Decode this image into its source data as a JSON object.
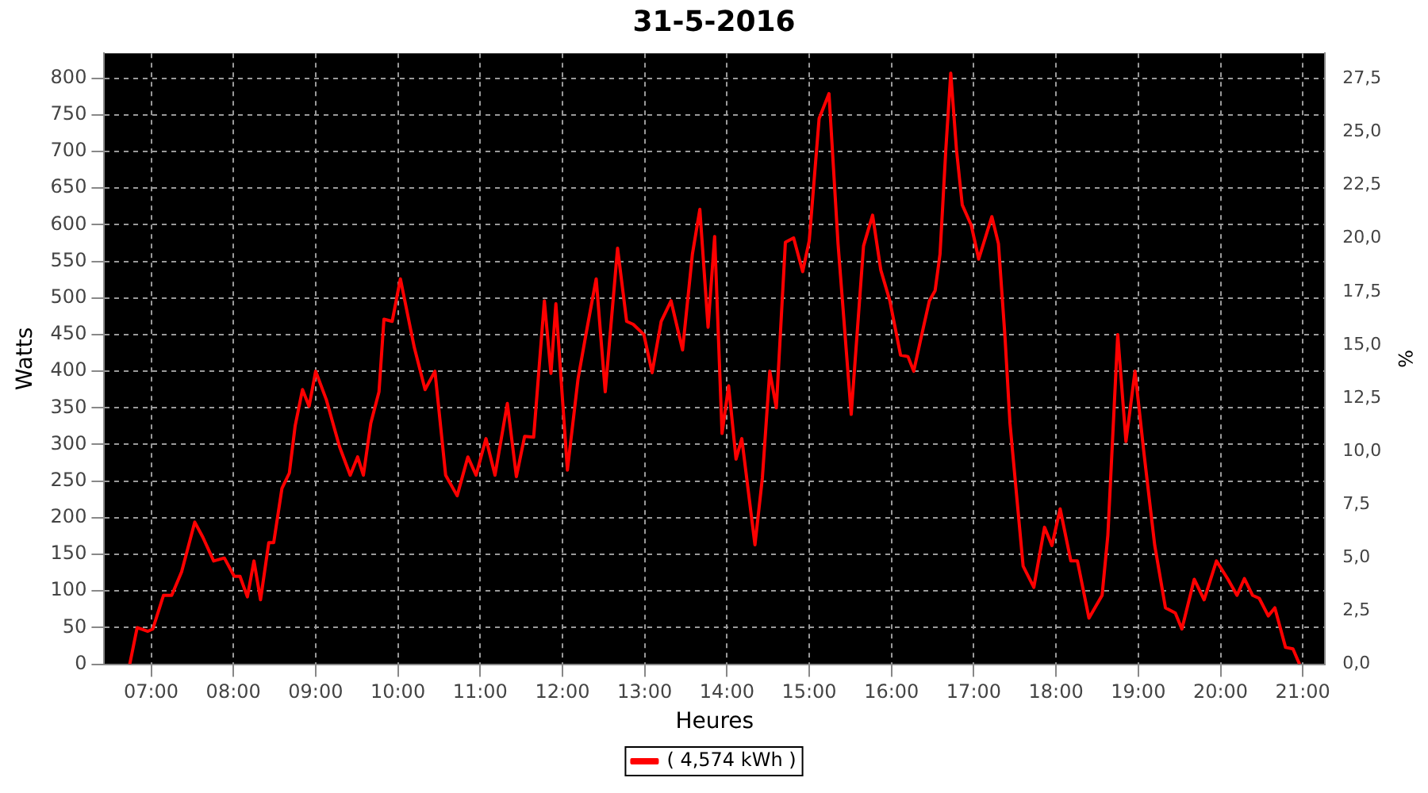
{
  "chart_data": {
    "type": "line",
    "title": "31-5-2016",
    "xlabel": "Heures",
    "ylabel": "Watts",
    "y2label": "%",
    "x": [
      6.74,
      6.83,
      6.96,
      7.02,
      7.15,
      7.25,
      7.37,
      7.53,
      7.63,
      7.76,
      7.89,
      8.01,
      8.08,
      8.17,
      8.25,
      8.33,
      8.43,
      8.49,
      8.59,
      8.68,
      8.75,
      8.84,
      8.92,
      9.0,
      9.13,
      9.29,
      9.42,
      9.51,
      9.58,
      9.67,
      9.77,
      9.83,
      9.93,
      10.03,
      10.2,
      10.33,
      10.45,
      10.58,
      10.72,
      10.85,
      10.95,
      11.07,
      11.18,
      11.33,
      11.44,
      11.54,
      11.65,
      11.78,
      11.86,
      11.92,
      12.06,
      12.19,
      12.29,
      12.41,
      12.52,
      12.67,
      12.78,
      12.86,
      12.99,
      13.09,
      13.2,
      13.32,
      13.46,
      13.58,
      13.67,
      13.77,
      13.85,
      13.94,
      14.02,
      14.11,
      14.18,
      14.34,
      14.43,
      14.52,
      14.6,
      14.71,
      14.81,
      14.92,
      15.0,
      15.12,
      15.24,
      15.35,
      15.51,
      15.66,
      15.77,
      15.87,
      15.98,
      16.11,
      16.2,
      16.27,
      16.36,
      16.46,
      16.53,
      16.59,
      16.66,
      16.72,
      16.79,
      16.86,
      16.97,
      17.06,
      17.22,
      17.3,
      17.38,
      17.44,
      17.6,
      17.73,
      17.86,
      17.95,
      18.05,
      18.18,
      18.26,
      18.4,
      18.56,
      18.63,
      18.75,
      18.85,
      18.96,
      19.07,
      19.2,
      19.33,
      19.45,
      19.53,
      19.68,
      19.8,
      19.95,
      20.09,
      20.2,
      20.29,
      20.39,
      20.47,
      20.58,
      20.66,
      20.79,
      20.88,
      20.96
    ],
    "series": [
      {
        "name": "( 4,574 kWh )",
        "color": "#ff0000",
        "values": [
          0,
          50,
          45,
          48,
          94,
          94,
          126,
          194,
          173,
          141,
          145,
          120,
          120,
          92,
          141,
          88,
          166,
          166,
          240,
          261,
          325,
          375,
          352,
          400,
          361,
          297,
          258,
          283,
          258,
          329,
          372,
          471,
          468,
          526,
          432,
          375,
          400,
          258,
          230,
          283,
          258,
          308,
          258,
          356,
          256,
          311,
          310,
          496,
          397,
          492,
          265,
          390,
          453,
          526,
          372,
          568,
          468,
          464,
          450,
          398,
          468,
          496,
          429,
          560,
          621,
          460,
          584,
          315,
          380,
          280,
          308,
          163,
          254,
          400,
          350,
          576,
          582,
          536,
          578,
          745,
          779,
          574,
          341,
          571,
          613,
          538,
          496,
          422,
          420,
          400,
          446,
          496,
          510,
          560,
          702,
          807,
          702,
          627,
          599,
          553,
          611,
          574,
          446,
          329,
          134,
          105,
          187,
          162,
          212,
          141,
          141,
          63,
          94,
          176,
          450,
          304,
          400,
          287,
          162,
          77,
          70,
          48,
          116,
          88,
          141,
          116,
          94,
          117,
          94,
          90,
          66,
          77,
          23,
          21,
          0
        ]
      }
    ],
    "xlim": [
      6.43,
      21.27
    ],
    "xticks": [
      {
        "value": 7,
        "label": "07:00"
      },
      {
        "value": 8,
        "label": "08:00"
      },
      {
        "value": 9,
        "label": "09:00"
      },
      {
        "value": 10,
        "label": "10:00"
      },
      {
        "value": 11,
        "label": "11:00"
      },
      {
        "value": 12,
        "label": "12:00"
      },
      {
        "value": 13,
        "label": "13:00"
      },
      {
        "value": 14,
        "label": "14:00"
      },
      {
        "value": 15,
        "label": "15:00"
      },
      {
        "value": 16,
        "label": "16:00"
      },
      {
        "value": 17,
        "label": "17:00"
      },
      {
        "value": 18,
        "label": "18:00"
      },
      {
        "value": 19,
        "label": "19:00"
      },
      {
        "value": 20,
        "label": "20:00"
      },
      {
        "value": 21,
        "label": "21:00"
      }
    ],
    "ylim": [
      0,
      834
    ],
    "yticks": [
      0,
      50,
      100,
      150,
      200,
      250,
      300,
      350,
      400,
      450,
      500,
      550,
      600,
      650,
      700,
      750,
      800
    ],
    "y2lim": [
      0,
      28.7
    ],
    "y2ticks": [
      {
        "value": 0,
        "label": "0,0"
      },
      {
        "value": 2.5,
        "label": "2,5"
      },
      {
        "value": 5,
        "label": "5,0"
      },
      {
        "value": 7.5,
        "label": "7,5"
      },
      {
        "value": 10,
        "label": "10,0"
      },
      {
        "value": 12.5,
        "label": "12,5"
      },
      {
        "value": 15,
        "label": "15,0"
      },
      {
        "value": 17.5,
        "label": "17,5"
      },
      {
        "value": 20,
        "label": "20,0"
      },
      {
        "value": 22.5,
        "label": "22,5"
      },
      {
        "value": 25,
        "label": "25,0"
      },
      {
        "value": 27.5,
        "label": "27,5"
      }
    ],
    "grid": true,
    "legend": "bottom",
    "marker": "none"
  }
}
